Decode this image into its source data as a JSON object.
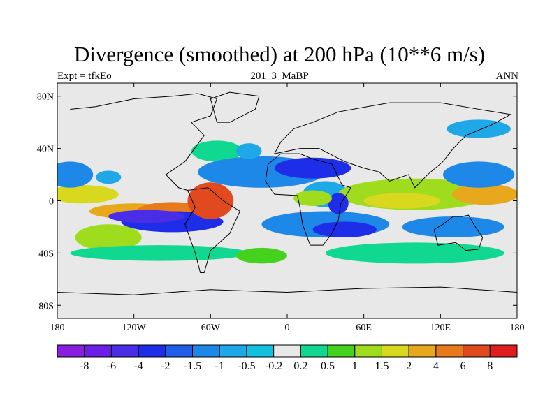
{
  "chart_data": {
    "type": "heatmap",
    "title": "Divergence (smoothed) at 200 hPa (10**6 m/s)",
    "subtitle_left": "Expt = tfkEo",
    "subtitle_center": "201_3_MaBP",
    "subtitle_right": "ANN",
    "x_ticks": [
      "180",
      "120W",
      "60W",
      "0",
      "60E",
      "120E",
      "180"
    ],
    "y_ticks": [
      "80N",
      "40N",
      "0",
      "40S",
      "80S"
    ],
    "xlim": [
      -180,
      180
    ],
    "ylim": [
      -90,
      90
    ],
    "colorbar": {
      "boundaries": [
        "-8",
        "-6",
        "-4",
        "-2",
        "-1.5",
        "-1",
        "-0.5",
        "-0.2",
        "0.2",
        "0.5",
        "1",
        "1.5",
        "2",
        "4",
        "6",
        "8"
      ],
      "colors": [
        "#8a1ee0",
        "#6a1ee6",
        "#4a2de6",
        "#1e2ee8",
        "#1e5ee8",
        "#1e88e8",
        "#1ea8e8",
        "#12c0e0",
        "#e8e8e8",
        "#10d890",
        "#44d21e",
        "#a0dc1e",
        "#d8d81e",
        "#e8a81e",
        "#e87a1e",
        "#e04a1e",
        "#e01e1e"
      ]
    },
    "background_color": "#e8e8e8",
    "blobs": [
      {
        "lon": -160,
        "lat": 5,
        "rx": 28,
        "ry": 7,
        "level": 12
      },
      {
        "lon": -120,
        "lat": -8,
        "rx": 35,
        "ry": 6,
        "level": 13
      },
      {
        "lon": -90,
        "lat": -8,
        "rx": 28,
        "ry": 7,
        "level": 14
      },
      {
        "lon": -170,
        "lat": 20,
        "rx": 18,
        "ry": 10,
        "level": 5
      },
      {
        "lon": -140,
        "lat": 18,
        "rx": 10,
        "ry": 5,
        "level": 6
      },
      {
        "lon": -90,
        "lat": -16,
        "rx": 40,
        "ry": 8,
        "level": 3
      },
      {
        "lon": -60,
        "lat": 0,
        "rx": 18,
        "ry": 14,
        "level": 15
      },
      {
        "lon": -55,
        "lat": 38,
        "rx": 20,
        "ry": 8,
        "level": 9
      },
      {
        "lon": -140,
        "lat": -28,
        "rx": 26,
        "ry": 10,
        "level": 11
      },
      {
        "lon": -110,
        "lat": -12,
        "rx": 30,
        "ry": 5,
        "level": 2
      },
      {
        "lon": -20,
        "lat": 22,
        "rx": 50,
        "ry": 12,
        "level": 5
      },
      {
        "lon": 20,
        "lat": 25,
        "rx": 30,
        "ry": 8,
        "level": 3
      },
      {
        "lon": 30,
        "lat": 5,
        "rx": 18,
        "ry": 10,
        "level": 6
      },
      {
        "lon": 30,
        "lat": -18,
        "rx": 50,
        "ry": 10,
        "level": 5
      },
      {
        "lon": 45,
        "lat": -22,
        "rx": 25,
        "ry": 6,
        "level": 3
      },
      {
        "lon": 100,
        "lat": 5,
        "rx": 60,
        "ry": 12,
        "level": 11
      },
      {
        "lon": 90,
        "lat": 0,
        "rx": 30,
        "ry": 6,
        "level": 12
      },
      {
        "lon": 155,
        "lat": 5,
        "rx": 26,
        "ry": 8,
        "level": 13
      },
      {
        "lon": 150,
        "lat": 20,
        "rx": 28,
        "ry": 10,
        "level": 5
      },
      {
        "lon": 130,
        "lat": -20,
        "rx": 40,
        "ry": 8,
        "level": 5
      },
      {
        "lon": 150,
        "lat": 55,
        "rx": 25,
        "ry": 7,
        "level": 6
      },
      {
        "lon": 100,
        "lat": -40,
        "rx": 70,
        "ry": 8,
        "level": 9
      },
      {
        "lon": -100,
        "lat": -40,
        "rx": 70,
        "ry": 6,
        "level": 9
      },
      {
        "lon": -20,
        "lat": -42,
        "rx": 20,
        "ry": 6,
        "level": 10
      },
      {
        "lon": 40,
        "lat": -2,
        "rx": 8,
        "ry": 8,
        "level": 3
      },
      {
        "lon": 20,
        "lat": 2,
        "rx": 15,
        "ry": 6,
        "level": 11
      },
      {
        "lon": -30,
        "lat": 38,
        "rx": 10,
        "ry": 6,
        "level": 6
      }
    ]
  }
}
